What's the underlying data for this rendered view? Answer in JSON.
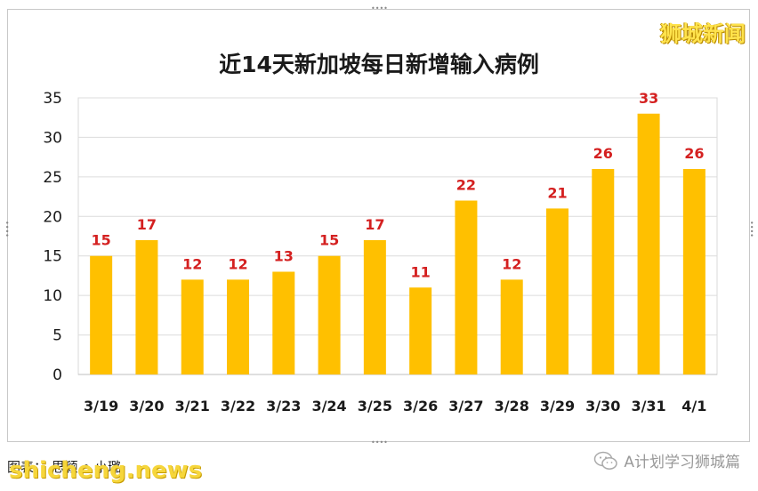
{
  "brand": "狮城新闻",
  "footer": {
    "credit": "图表： 思颖 • 小璐",
    "site": "shicheng.news",
    "wechat_account": "A计划学习狮城篇"
  },
  "chart_data": {
    "type": "bar",
    "title": "近14天新加坡每日新增输入病例",
    "categories": [
      "3/19",
      "3/20",
      "3/21",
      "3/22",
      "3/23",
      "3/24",
      "3/25",
      "3/26",
      "3/27",
      "3/28",
      "3/29",
      "3/30",
      "3/31",
      "4/1"
    ],
    "values": [
      15,
      17,
      12,
      12,
      13,
      15,
      17,
      11,
      22,
      12,
      21,
      26,
      33,
      26
    ],
    "ylim": [
      0,
      35
    ],
    "yticks": [
      0,
      5,
      10,
      15,
      20,
      25,
      30,
      35
    ],
    "grid": true,
    "legend": "none",
    "colors": {
      "bar": "#ffc000",
      "data_label": "#d42020",
      "grid": "#dcdcdc"
    }
  }
}
